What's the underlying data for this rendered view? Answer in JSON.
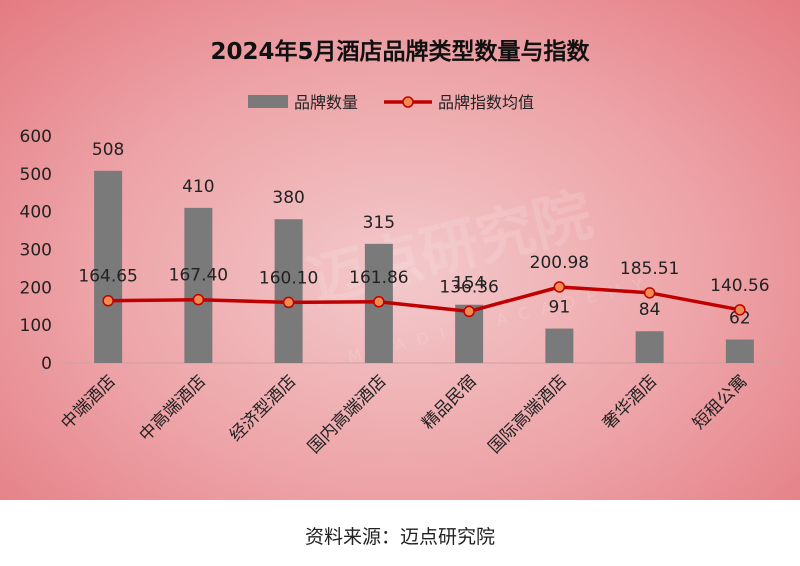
{
  "chart_data": {
    "type": "bar",
    "title": "2024年5月酒店品牌类型数量与指数",
    "categories": [
      "中端酒店",
      "中高端酒店",
      "经济型酒店",
      "国内高端酒店",
      "精品民宿",
      "国际高端酒店",
      "奢华酒店",
      "短租公寓"
    ],
    "series": [
      {
        "name": "品牌数量",
        "kind": "bar",
        "color": "#7a7a7a",
        "values": [
          508,
          410,
          380,
          315,
          154,
          91,
          84,
          62
        ],
        "labels": [
          "508",
          "410",
          "380",
          "315",
          "154",
          "91",
          "84",
          "62"
        ]
      },
      {
        "name": "品牌指数均值",
        "kind": "line",
        "color": "#c00000",
        "marker_color": "#f08c50",
        "values": [
          164.65,
          167.4,
          160.1,
          161.86,
          136.36,
          200.98,
          185.51,
          140.56
        ],
        "labels": [
          "164.65",
          "167.40",
          "160.10",
          "161.86",
          "136.36",
          "200.98",
          "185.51",
          "140.56"
        ]
      }
    ],
    "ylim": [
      0,
      600
    ],
    "yticks": [
      "0",
      "100",
      "200",
      "300",
      "400",
      "500",
      "600"
    ],
    "grid": false,
    "legend": "top-center"
  },
  "watermark": {
    "text": "迈点研究院",
    "subtext": "MEADIN ACADEMY"
  },
  "source": "资料来源：迈点研究院"
}
